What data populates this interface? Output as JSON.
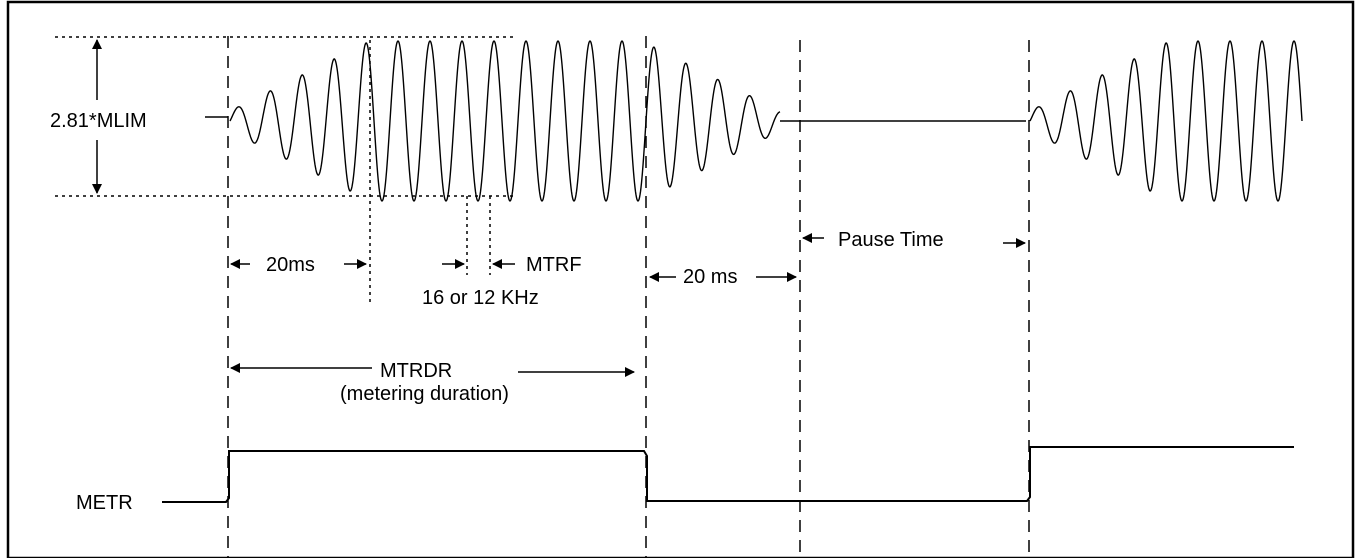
{
  "labels": {
    "amplitude": "2.81*MLIM",
    "ramp_up": "20ms",
    "mtrf": "MTRF",
    "frequency": "16 or 12 KHz",
    "ramp_down": "20 ms",
    "pause": "Pause Time",
    "mtrdr": "MTRDR",
    "mtrdr_desc": "(metering duration)",
    "metr": "METR"
  }
}
